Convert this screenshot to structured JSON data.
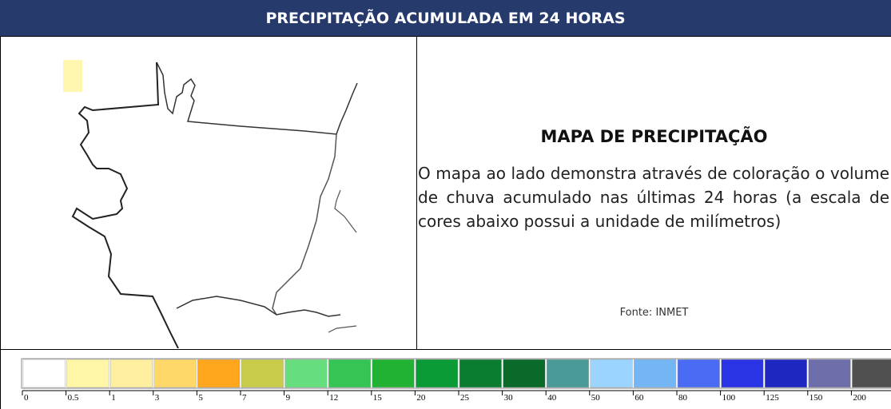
{
  "header": {
    "title": "PRECIPITAÇÃO ACUMULADA EM 24 HORAS"
  },
  "panel": {
    "heading": "MAPA DE PRECIPITAÇÃO",
    "text": "O mapa ao lado demonstra através de coloração o volume de chuva acumulado nas últimas 24 horas (a escala de cores abaixo possui a unidade de milímetros)",
    "source": "Fonte: INMET"
  },
  "scale": {
    "labels": [
      "0",
      "0.5",
      "1",
      "3",
      "5",
      "7",
      "9",
      "12",
      "15",
      "20",
      "25",
      "30",
      "40",
      "50",
      "60",
      "80",
      "100",
      "125",
      "150",
      "200"
    ],
    "colors": [
      "#ffffff",
      "#fff6a8",
      "#fff0a0",
      "#ffd86a",
      "#ffa61c",
      "#c8cc4a",
      "#66de7e",
      "#36c455",
      "#22b233",
      "#0a9a36",
      "#0a7d30",
      "#0a6a2a",
      "#4a9a98",
      "#9ad4ff",
      "#74b6f4",
      "#4a6cf4",
      "#2a34e4",
      "#1e28c0",
      "#6e6eaa",
      "#505050"
    ]
  }
}
